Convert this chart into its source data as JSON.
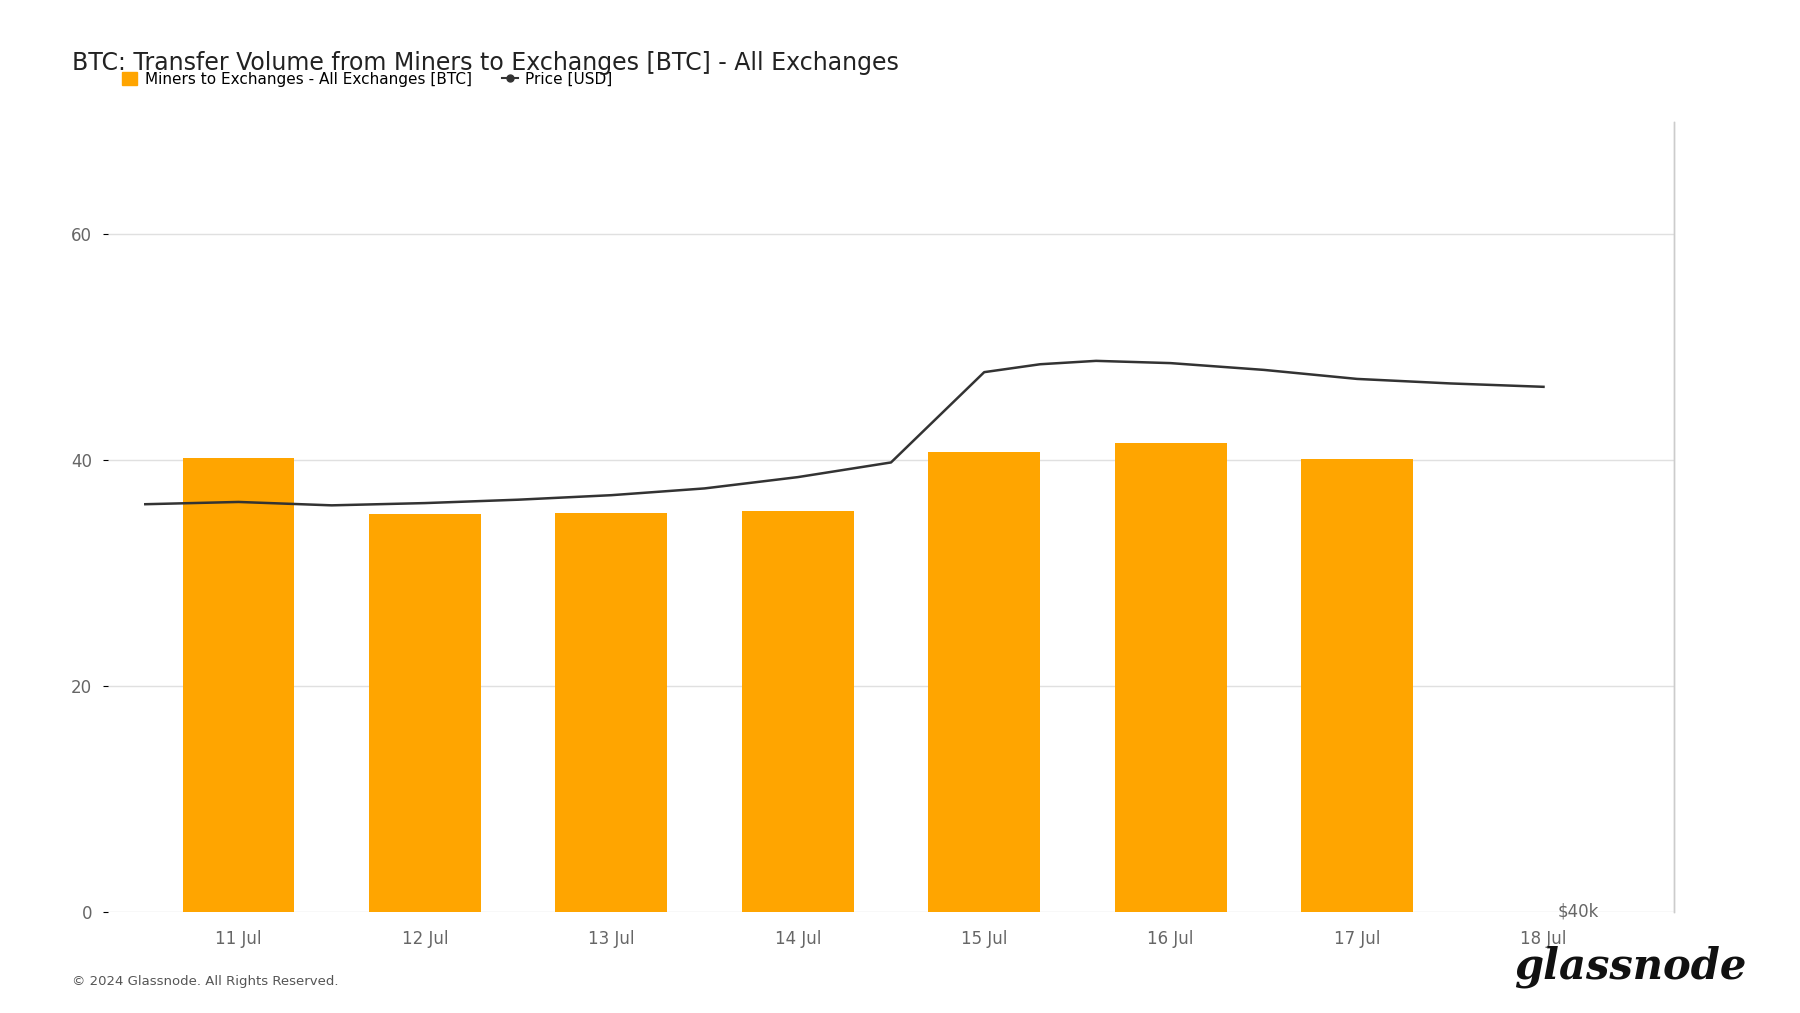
{
  "title": "BTC: Transfer Volume from Miners to Exchanges [BTC] - All Exchanges",
  "legend_bar": "Miners to Exchanges - All Exchanges [BTC]",
  "legend_line": "Price [USD]",
  "copyright": "© 2024 Glassnode. All Rights Reserved.",
  "watermark": "glassnode",
  "bar_x": [
    1,
    2,
    3,
    4,
    5,
    6,
    7
  ],
  "bar_values": [
    40.2,
    35.2,
    35.3,
    35.5,
    40.7,
    41.5,
    40.1
  ],
  "bar_color": "#FFA500",
  "bar_width": 0.6,
  "price_x": [
    0.5,
    1.0,
    1.5,
    2.0,
    2.5,
    3.0,
    3.5,
    4.0,
    4.5,
    5.0,
    5.3,
    5.6,
    6.0,
    6.5,
    7.0,
    7.5,
    8.0
  ],
  "price_y": [
    36.1,
    36.3,
    36.0,
    36.2,
    36.5,
    36.9,
    37.5,
    38.5,
    39.8,
    47.8,
    48.5,
    48.8,
    48.6,
    48.0,
    47.2,
    46.8,
    46.5
  ],
  "price_color": "#333333",
  "price_label": "$40k",
  "xlim": [
    0.3,
    8.7
  ],
  "ylim_left": [
    0,
    70
  ],
  "ylim_right": [
    0,
    70
  ],
  "yticks_left": [
    0,
    20,
    40,
    60
  ],
  "xtick_positions": [
    1,
    2,
    3,
    4,
    5,
    6,
    7,
    8
  ],
  "xtick_labels": [
    "11 Jul",
    "12 Jul",
    "13 Jul",
    "14 Jul",
    "15 Jul",
    "16 Jul",
    "17 Jul",
    "18 Jul"
  ],
  "background_color": "#ffffff",
  "grid_color": "#e0e0e0",
  "title_fontsize": 17,
  "tick_fontsize": 12,
  "legend_fontsize": 11
}
